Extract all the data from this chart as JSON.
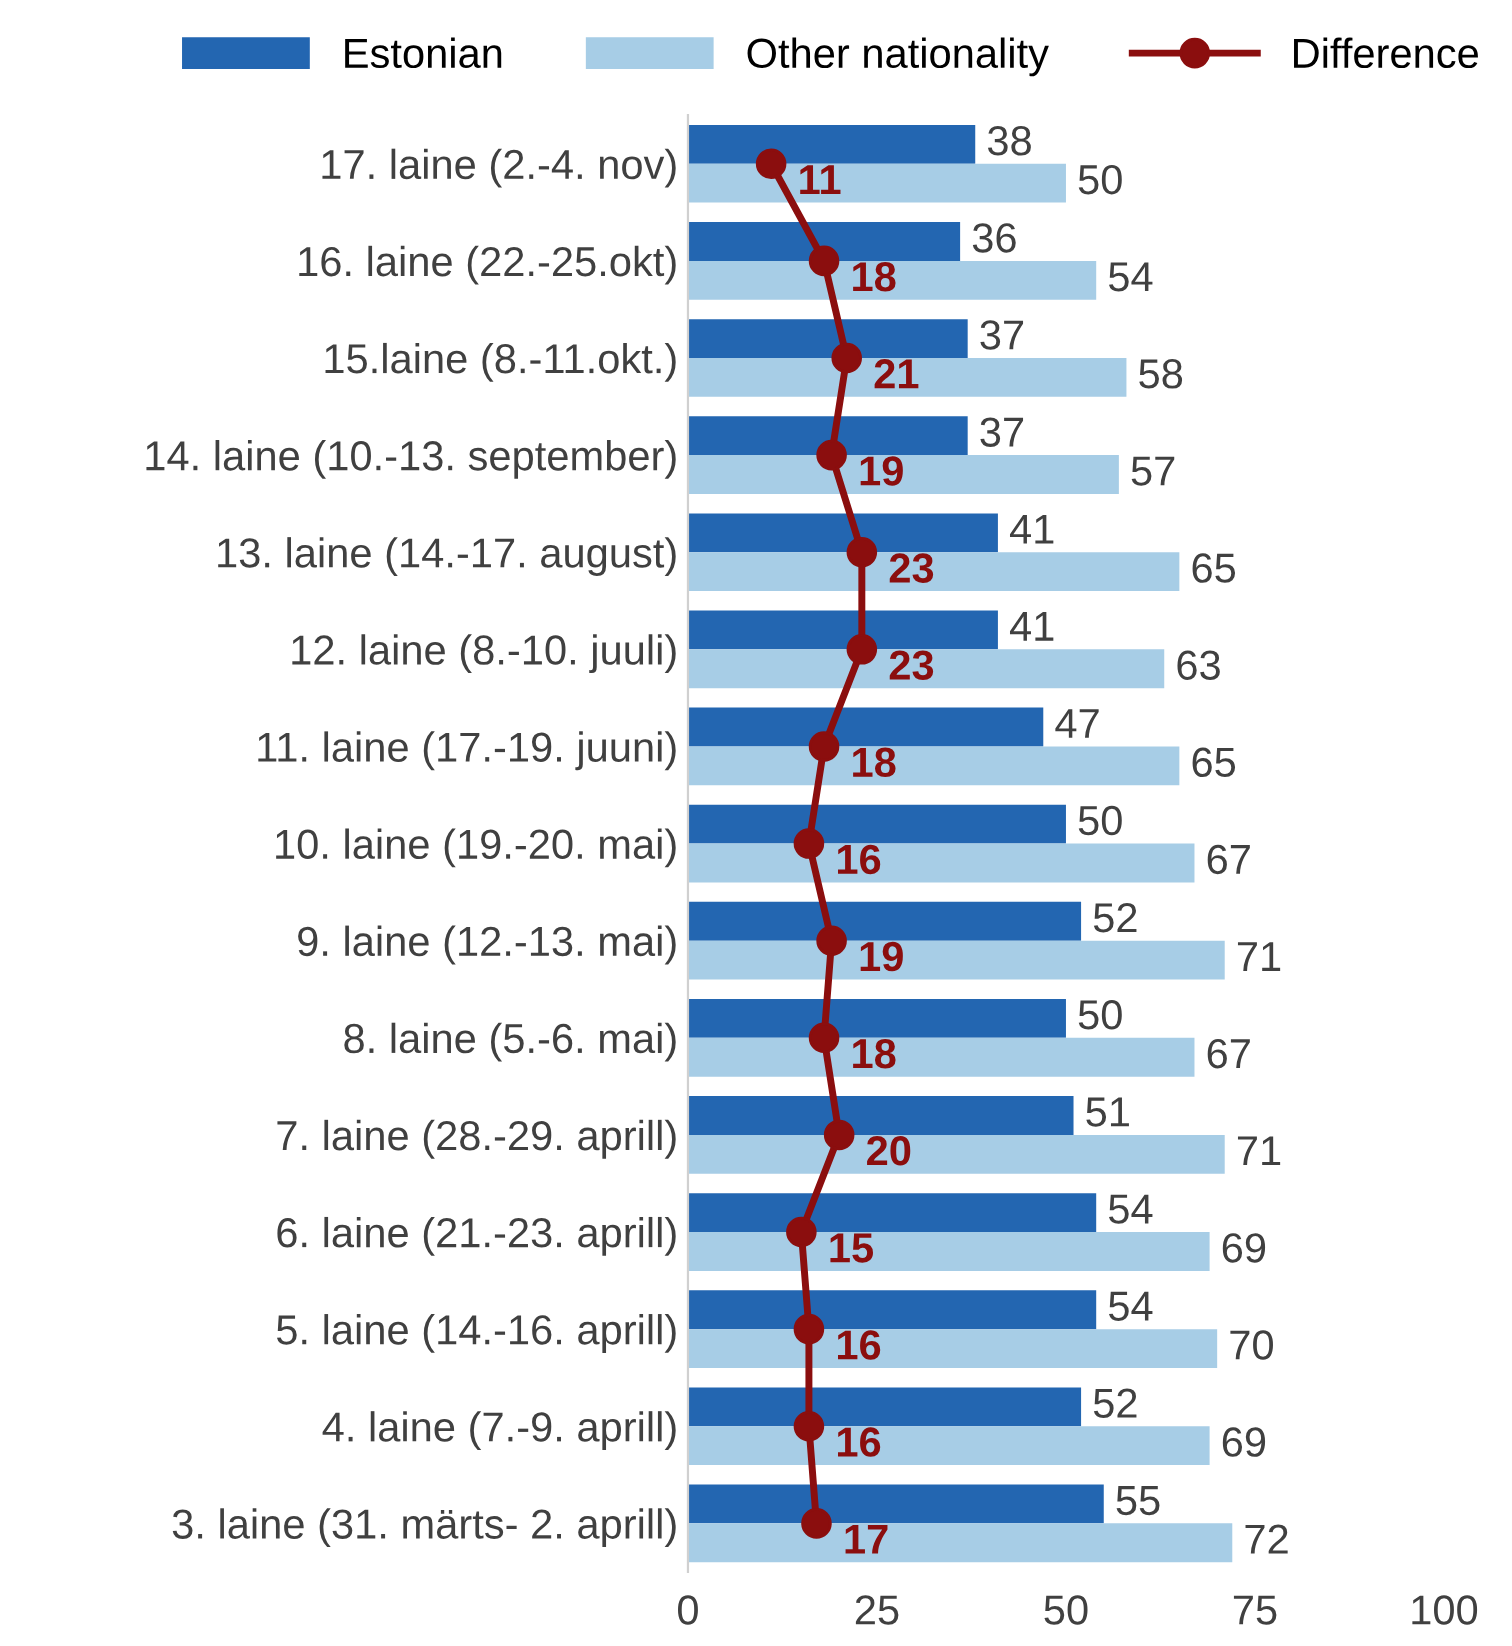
{
  "chart_data": {
    "type": "bar",
    "orientation": "horizontal",
    "categories": [
      "17. laine (2.-4. nov)",
      "16. laine (22.-25.okt)",
      "15.laine (8.-11.okt.)",
      "14. laine (10.-13. september)",
      "13. laine (14.-17. august)",
      "12. laine (8.-10. juuli)",
      "11. laine (17.-19. juuni)",
      "10. laine (19.-20. mai)",
      "9. laine (12.-13. mai)",
      "8. laine (5.-6. mai)",
      "7. laine (28.-29. aprill)",
      "6. laine (21.-23. aprill)",
      "5. laine (14.-16. aprill)",
      "4. laine (7.-9. aprill)",
      "3. laine (31. märts- 2. aprill)"
    ],
    "series": [
      {
        "name": "Estonian",
        "color": "#2366b1",
        "values": [
          38,
          36,
          37,
          37,
          41,
          41,
          47,
          50,
          52,
          50,
          51,
          54,
          54,
          52,
          55
        ]
      },
      {
        "name": "Other nationality",
        "color": "#a7cde6",
        "values": [
          50,
          54,
          58,
          57,
          65,
          63,
          65,
          67,
          71,
          67,
          71,
          69,
          70,
          69,
          72
        ]
      },
      {
        "name": "Difference",
        "type": "line",
        "color": "#8b0e0e",
        "values": [
          11,
          18,
          21,
          19,
          23,
          23,
          18,
          16,
          19,
          18,
          20,
          15,
          16,
          16,
          17
        ]
      }
    ],
    "xlim": [
      0,
      100
    ],
    "xticks": [
      0,
      25,
      50,
      75,
      100
    ],
    "data_labels": true,
    "legend": "top",
    "marker": "circle",
    "line_style": "solid",
    "grid": false
  }
}
